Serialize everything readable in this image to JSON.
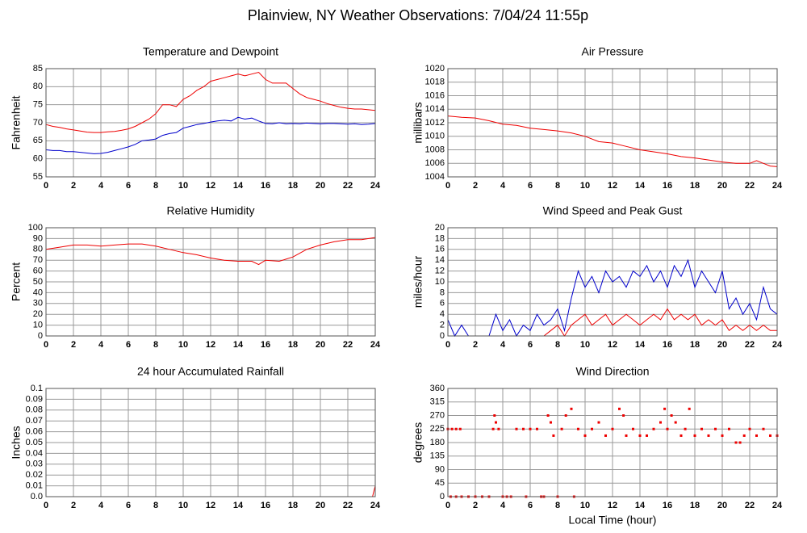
{
  "title": "Plainview, NY Weather Observations: 7/04/24 11:55p",
  "chart_data": [
    {
      "type": "line",
      "title": "Temperature and Dewpoint",
      "ylabel": "Fahrenheit",
      "x": [
        0,
        0.5,
        1,
        1.5,
        2,
        2.5,
        3,
        3.5,
        4,
        4.5,
        5,
        5.5,
        6,
        6.5,
        7,
        7.5,
        8,
        8.5,
        9,
        9.5,
        10,
        10.5,
        11,
        11.5,
        12,
        12.5,
        13,
        13.5,
        14,
        14.5,
        15,
        15.5,
        16,
        16.5,
        17,
        17.5,
        18,
        18.5,
        19,
        19.5,
        20,
        20.5,
        21,
        21.5,
        22,
        22.5,
        23,
        23.5,
        24
      ],
      "series": [
        {
          "name": "Temperature",
          "color": "#ee0000",
          "values": [
            69.5,
            69,
            68.7,
            68.3,
            68,
            67.7,
            67.4,
            67.3,
            67.3,
            67.5,
            67.6,
            67.9,
            68.3,
            69,
            70,
            71,
            72.5,
            75,
            75,
            74.5,
            76.5,
            77.5,
            79,
            80,
            81.5,
            82,
            82.5,
            83,
            83.5,
            83,
            83.5,
            84,
            82,
            81,
            81,
            81,
            79.5,
            78,
            77,
            76.5,
            76,
            75.3,
            74.8,
            74.3,
            74,
            73.8,
            73.8,
            73.6,
            73.4
          ]
        },
        {
          "name": "Dewpoint",
          "color": "#0000cc",
          "values": [
            62.5,
            62.3,
            62.3,
            62,
            62,
            61.8,
            61.6,
            61.4,
            61.5,
            61.8,
            62.3,
            62.8,
            63.3,
            64,
            65,
            65.2,
            65.5,
            66.5,
            67,
            67.3,
            68.5,
            69,
            69.5,
            69.8,
            70.2,
            70.5,
            70.7,
            70.5,
            71.5,
            71,
            71.3,
            70.5,
            69.8,
            69.7,
            70,
            69.7,
            69.8,
            69.7,
            69.9,
            69.8,
            69.7,
            69.8,
            69.8,
            69.7,
            69.6,
            69.7,
            69.5,
            69.6,
            69.8
          ]
        }
      ],
      "xlim": [
        0,
        24
      ],
      "xticks": [
        0,
        2,
        4,
        6,
        8,
        10,
        12,
        14,
        16,
        18,
        20,
        22,
        24
      ],
      "ylim": [
        55,
        85
      ],
      "yticks": [
        55,
        60,
        65,
        70,
        75,
        80,
        85
      ],
      "grid": true
    },
    {
      "type": "line",
      "title": "Air Pressure",
      "ylabel": "millibars",
      "x": [
        0,
        1,
        2,
        3,
        4,
        5,
        6,
        7,
        8,
        9,
        10,
        11,
        12,
        13,
        14,
        15,
        16,
        17,
        18,
        19,
        20,
        21,
        22,
        22.5,
        23,
        23.5,
        24
      ],
      "series": [
        {
          "name": "Pressure",
          "color": "#ee0000",
          "values": [
            1013,
            1012.8,
            1012.7,
            1012.3,
            1011.8,
            1011.6,
            1011.2,
            1011,
            1010.8,
            1010.5,
            1010,
            1009.2,
            1009,
            1008.5,
            1008,
            1007.7,
            1007.4,
            1007,
            1006.8,
            1006.5,
            1006.2,
            1006,
            1006,
            1006.4,
            1006,
            1005.6,
            1005.5
          ]
        }
      ],
      "xlim": [
        0,
        24
      ],
      "xticks": [
        0,
        2,
        4,
        6,
        8,
        10,
        12,
        14,
        16,
        18,
        20,
        22,
        24
      ],
      "ylim": [
        1004,
        1020
      ],
      "yticks": [
        1004,
        1006,
        1008,
        1010,
        1012,
        1014,
        1016,
        1018,
        1020
      ],
      "grid": true
    },
    {
      "type": "line",
      "title": "Relative Humidity",
      "ylabel": "Percent",
      "x": [
        0,
        1,
        2,
        3,
        4,
        5,
        6,
        7,
        8,
        9,
        10,
        11,
        12,
        13,
        14,
        15,
        15.5,
        16,
        17,
        18,
        19,
        20,
        21,
        22,
        23,
        24
      ],
      "series": [
        {
          "name": "Humidity",
          "color": "#ee0000",
          "values": [
            80,
            82,
            84,
            84,
            83,
            84,
            85,
            85,
            83,
            80,
            77,
            75,
            72,
            70,
            69,
            69,
            66,
            70,
            69,
            73,
            80,
            84,
            87,
            89,
            89,
            91
          ]
        }
      ],
      "xlim": [
        0,
        24
      ],
      "xticks": [
        0,
        2,
        4,
        6,
        8,
        10,
        12,
        14,
        16,
        18,
        20,
        22,
        24
      ],
      "ylim": [
        0,
        100
      ],
      "yticks": [
        0,
        10,
        20,
        30,
        40,
        50,
        60,
        70,
        80,
        90,
        100
      ],
      "grid": true
    },
    {
      "type": "line",
      "title": "Wind Speed and Peak Gust",
      "ylabel": "miles/hour",
      "x": [
        0,
        0.5,
        1,
        1.5,
        2,
        2.5,
        3,
        3.5,
        4,
        4.5,
        5,
        5.5,
        6,
        6.5,
        7,
        7.5,
        8,
        8.5,
        9,
        9.5,
        10,
        10.5,
        11,
        11.5,
        12,
        12.5,
        13,
        13.5,
        14,
        14.5,
        15,
        15.5,
        16,
        16.5,
        17,
        17.5,
        18,
        18.5,
        19,
        19.5,
        20,
        20.5,
        21,
        21.5,
        22,
        22.5,
        23,
        23.5,
        24
      ],
      "series": [
        {
          "name": "Peak Gust",
          "color": "#0000cc",
          "values": [
            3,
            0,
            2,
            0,
            0,
            0,
            0,
            4,
            1,
            3,
            0,
            2,
            1,
            4,
            2,
            3,
            5,
            1,
            7,
            12,
            9,
            11,
            8,
            12,
            10,
            11,
            9,
            12,
            11,
            13,
            10,
            12,
            9,
            13,
            11,
            14,
            9,
            12,
            10,
            8,
            12,
            5,
            7,
            4,
            6,
            3,
            9,
            5,
            4
          ]
        },
        {
          "name": "Wind Speed",
          "color": "#ee0000",
          "values": [
            0,
            0,
            0,
            0,
            0,
            0,
            0,
            0,
            0,
            0,
            0,
            0,
            0,
            0,
            0,
            1,
            2,
            0,
            2,
            3,
            4,
            2,
            3,
            4,
            2,
            3,
            4,
            3,
            2,
            3,
            4,
            3,
            5,
            3,
            4,
            3,
            4,
            2,
            3,
            2,
            3,
            1,
            2,
            1,
            2,
            1,
            2,
            1,
            1
          ]
        }
      ],
      "xlim": [
        0,
        24
      ],
      "xticks": [
        0,
        2,
        4,
        6,
        8,
        10,
        12,
        14,
        16,
        18,
        20,
        22,
        24
      ],
      "ylim": [
        0,
        20
      ],
      "yticks": [
        0,
        2,
        4,
        6,
        8,
        10,
        12,
        14,
        16,
        18,
        20
      ],
      "grid": true
    },
    {
      "type": "line",
      "title": "24 hour Accumulated Rainfall",
      "ylabel": "Inches",
      "x": [
        0,
        23.8,
        23.9,
        24
      ],
      "series": [
        {
          "name": "Rainfall",
          "color": "#ee0000",
          "values": [
            0,
            0,
            0.005,
            0.01
          ]
        }
      ],
      "xlim": [
        0,
        24
      ],
      "xticks": [
        0,
        2,
        4,
        6,
        8,
        10,
        12,
        14,
        16,
        18,
        20,
        22,
        24
      ],
      "ylim": [
        0,
        0.1
      ],
      "yticks": [
        {
          "value": 0,
          "label": "0.0"
        },
        0.01,
        0.02,
        0.03,
        0.04,
        0.05,
        0.06,
        0.07,
        0.08,
        0.09,
        0.1
      ],
      "grid": true
    },
    {
      "type": "scatter",
      "title": "Wind Direction",
      "ylabel": "degrees",
      "xlabel": "Local Time (hour)",
      "x": [
        0,
        0.3,
        0.6,
        0.9,
        0.2,
        0.6,
        1,
        1.5,
        2,
        2.5,
        3,
        3.3,
        3.4,
        3.5,
        3.7,
        4,
        4.3,
        4.6,
        5,
        5.5,
        5.7,
        6,
        6.5,
        6.8,
        7,
        7.3,
        7.5,
        7.7,
        8,
        8.3,
        8.6,
        9,
        9.2,
        9.5,
        10,
        10.5,
        11,
        11.5,
        12,
        12.5,
        12.8,
        13,
        13.5,
        14,
        14.5,
        15,
        15.5,
        15.8,
        16,
        16.3,
        16.6,
        17,
        17.3,
        17.6,
        18,
        18.5,
        19,
        19.5,
        20,
        20.5,
        21,
        21.3,
        21.6,
        22,
        22.5,
        23,
        23.5,
        24
      ],
      "series": [
        {
          "name": "Direction",
          "color": "#ee0000",
          "values": [
            225,
            225,
            225,
            225,
            0,
            0,
            0,
            0,
            0,
            0,
            0,
            225,
            270,
            247,
            225,
            0,
            0,
            0,
            225,
            225,
            0,
            225,
            225,
            0,
            0,
            270,
            247,
            203,
            0,
            225,
            270,
            292,
            0,
            225,
            203,
            225,
            247,
            203,
            225,
            292,
            270,
            203,
            225,
            203,
            203,
            225,
            247,
            292,
            225,
            270,
            247,
            203,
            225,
            292,
            203,
            225,
            203,
            225,
            203,
            225,
            180,
            180,
            203,
            225,
            203,
            225,
            203,
            203
          ]
        }
      ],
      "xlim": [
        0,
        24
      ],
      "xticks": [
        0,
        2,
        4,
        6,
        8,
        10,
        12,
        14,
        16,
        18,
        20,
        22,
        24
      ],
      "ylim": [
        0,
        360
      ],
      "yticks": [
        0,
        45,
        90,
        135,
        180,
        225,
        270,
        315,
        360
      ],
      "grid": true
    }
  ]
}
